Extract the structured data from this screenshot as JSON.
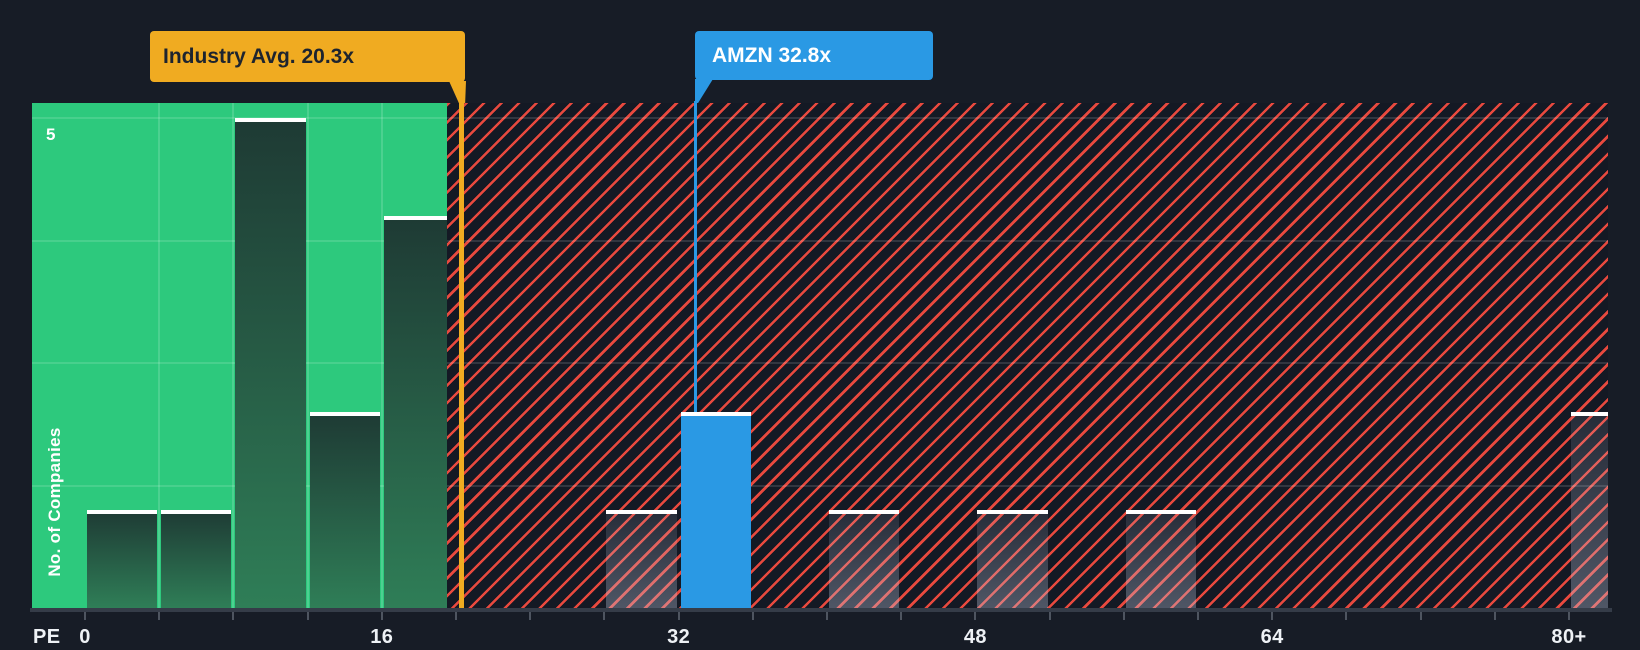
{
  "chart_data": {
    "type": "bar",
    "subtype": "histogram",
    "xlabel": "PE",
    "ylabel": "No. of Companies",
    "y_axis_top_label": "5",
    "ylim": [
      0,
      5
    ],
    "y_gridline_divisions": 4,
    "grid": true,
    "bin_width_pe": 4,
    "x_tick_labels": [
      {
        "label": "0",
        "pe": 0
      },
      {
        "label": "16",
        "pe": 16
      },
      {
        "label": "32",
        "pe": 32
      },
      {
        "label": "48",
        "pe": 48
      },
      {
        "label": "64",
        "pe": 64
      },
      {
        "label": "80+",
        "pe": 80
      }
    ],
    "bins": [
      {
        "pe_start": 0,
        "count": 1
      },
      {
        "pe_start": 4,
        "count": 1
      },
      {
        "pe_start": 8,
        "count": 5
      },
      {
        "pe_start": 12,
        "count": 2
      },
      {
        "pe_start": 16,
        "count": 4
      },
      {
        "pe_start": 20,
        "count": 0
      },
      {
        "pe_start": 24,
        "count": 0
      },
      {
        "pe_start": 28,
        "count": 1
      },
      {
        "pe_start": 32,
        "count": 2
      },
      {
        "pe_start": 36,
        "count": 0
      },
      {
        "pe_start": 40,
        "count": 1
      },
      {
        "pe_start": 44,
        "count": 0
      },
      {
        "pe_start": 48,
        "count": 1
      },
      {
        "pe_start": 52,
        "count": 0
      },
      {
        "pe_start": 56,
        "count": 1
      },
      {
        "pe_start": 60,
        "count": 0
      },
      {
        "pe_start": 64,
        "count": 0
      },
      {
        "pe_start": 68,
        "count": 0
      },
      {
        "pe_start": 72,
        "count": 0
      },
      {
        "pe_start": 76,
        "count": 0
      },
      {
        "pe_start": 80,
        "count": 2,
        "open_ended": true
      }
    ],
    "highlight_bin_pe_start": 32,
    "markers": {
      "industry": {
        "label": "Industry Avg. 20.3x",
        "value": 20.3
      },
      "company": {
        "label": "AMZN 32.8x",
        "ticker": "AMZN",
        "value": 32.8
      }
    },
    "zones": {
      "below_average": "solid-green",
      "above_average": "red-diagonal-hatch"
    }
  },
  "colors": {
    "bg": "#171c26",
    "green_zone": "#2dc97d",
    "hatch_bg": "#141924",
    "red_stripe": "#e8493e",
    "blue": "#2a99e4",
    "yellow": "#f0ab21",
    "bar_top": "#1e3a34",
    "bar_bottom": "#2f7e57",
    "axis": "#353c48",
    "tick": "#4e5560",
    "text": "#eef1f5",
    "callout_text": "#1d242f"
  }
}
